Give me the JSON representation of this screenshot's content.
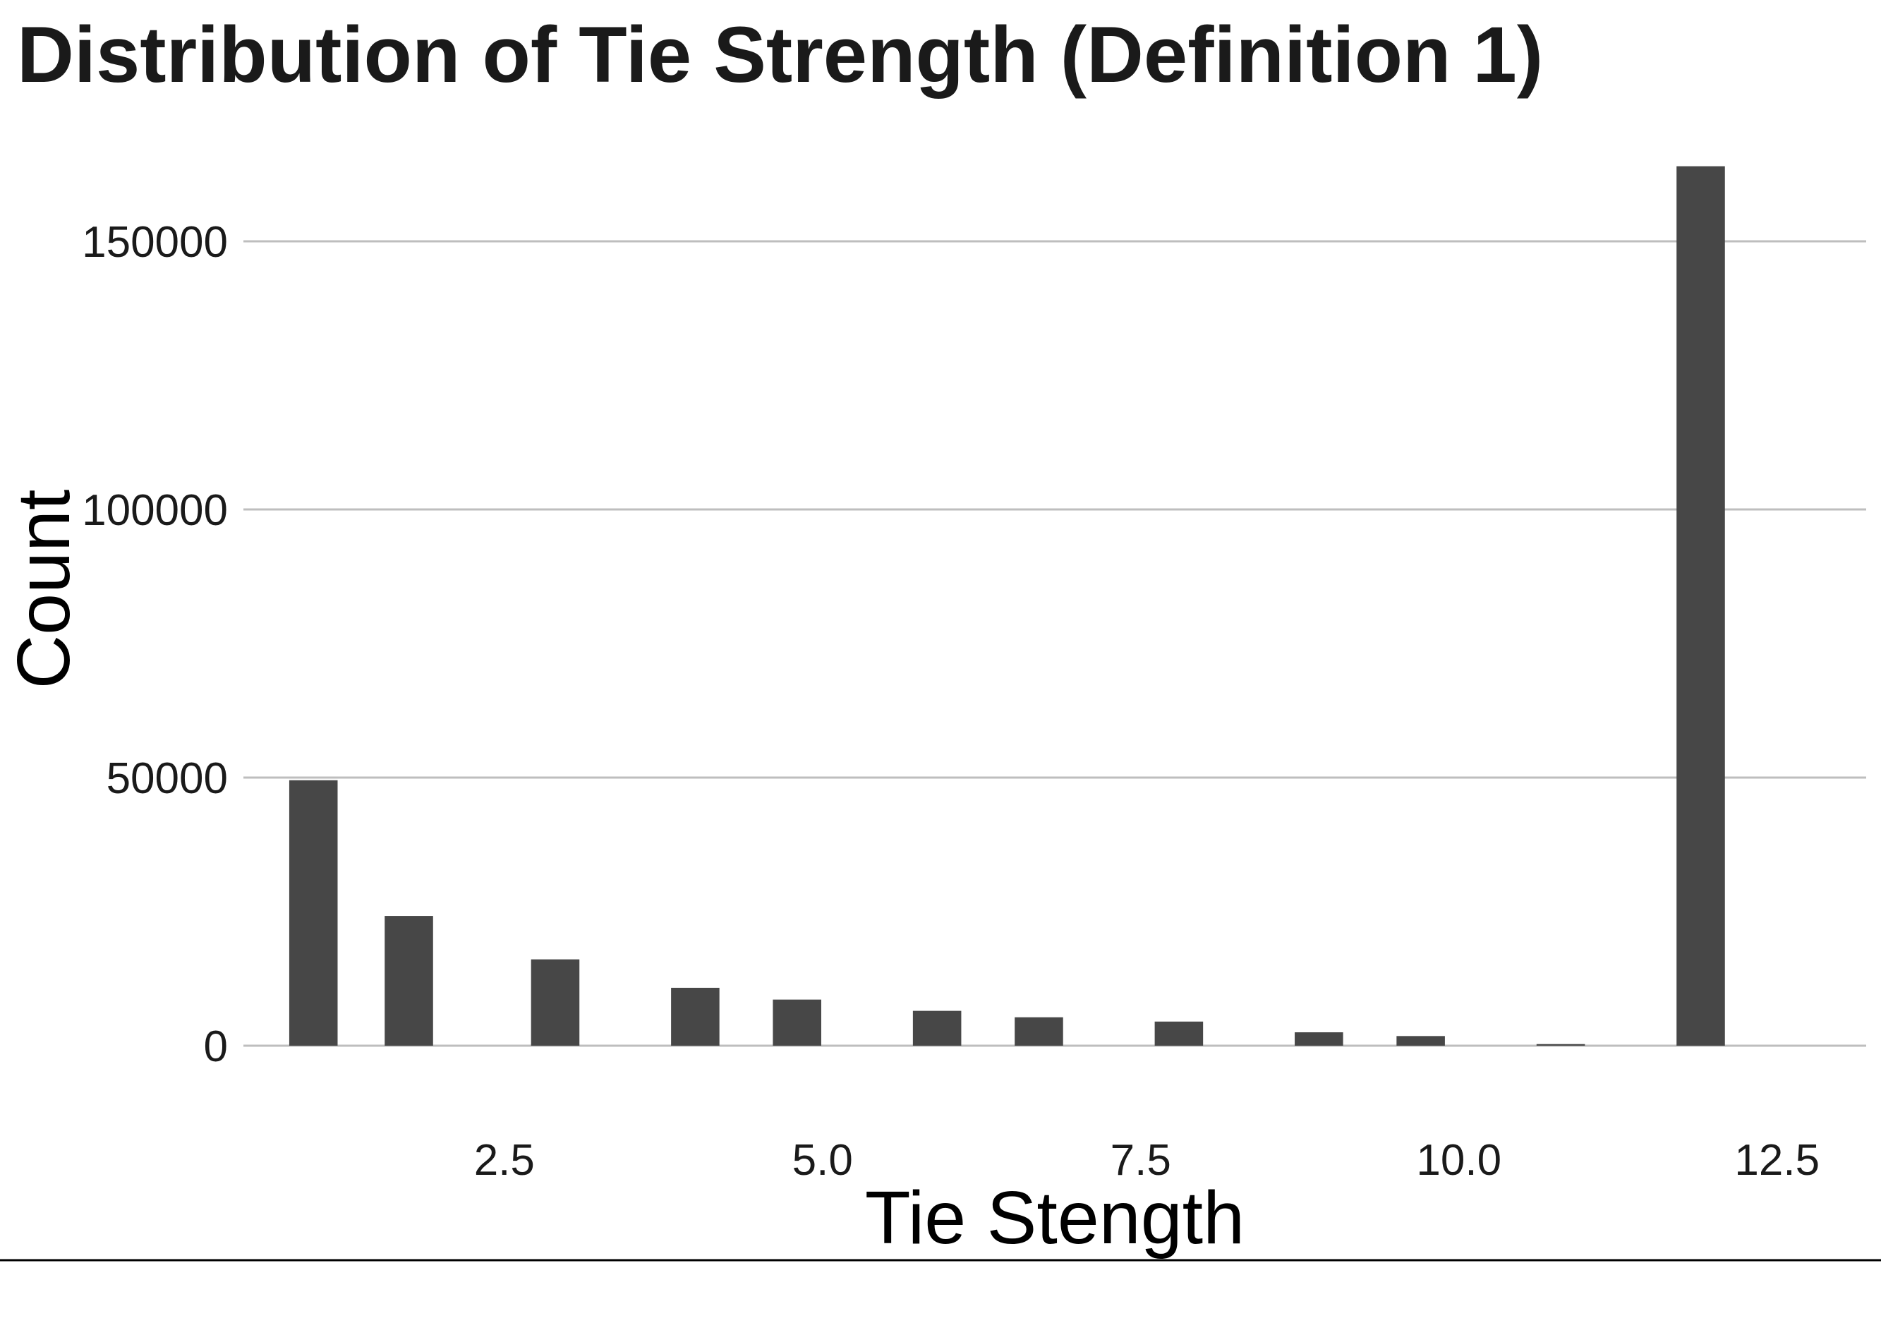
{
  "chart_data": {
    "type": "bar",
    "title": "Distribution of Tie Strength (Definition 1)",
    "xlabel": "Tie Stength",
    "ylabel": "Count",
    "x_ticks": [
      "2.5",
      "5.0",
      "7.5",
      "10.0",
      "12.5"
    ],
    "x_tick_values": [
      2.5,
      5.0,
      7.5,
      10.0,
      12.5
    ],
    "y_ticks": [
      "0",
      "50000",
      "100000",
      "150000"
    ],
    "y_tick_values": [
      0,
      50000,
      100000,
      150000
    ],
    "xlim": [
      0.45,
      13.2
    ],
    "ylim": [
      -5000,
      170000
    ],
    "grid": "horizontal",
    "bar_width": 0.38,
    "bar_color": "#474747",
    "gridline_color": "#bebebe",
    "x": [
      1,
      1.75,
      2.9,
      4.0,
      4.8,
      5.9,
      6.7,
      7.8,
      8.9,
      9.7,
      10.8,
      11.9
    ],
    "values": [
      49500,
      24200,
      16100,
      10800,
      8600,
      6500,
      5300,
      4500,
      2500,
      1800,
      300,
      164000
    ]
  }
}
